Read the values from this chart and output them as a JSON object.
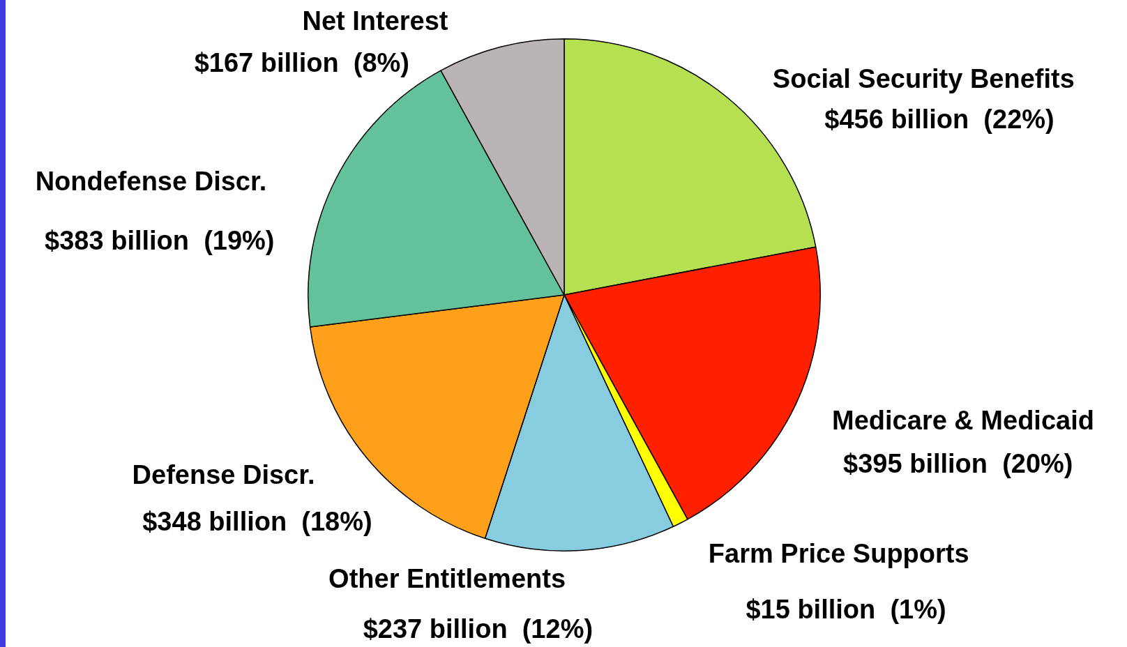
{
  "chart_data": {
    "type": "pie",
    "categories": [
      "Social Security Benefits",
      "Medicare & Medicaid",
      "Farm Price Supports",
      "Other Entitlements",
      "Defense Discr.",
      "Nondefense Discr.",
      "Net Interest"
    ],
    "values": [
      22,
      20,
      1,
      12,
      18,
      19,
      8
    ],
    "value_labels": [
      "$456 billion  (22%)",
      "$395 billion  (20%)",
      "$15 billion  (1%)",
      "$237 billion  (12%)",
      "$348 billion  (18%)",
      "$383 billion  (19%)",
      "$167 billion  (8%)"
    ],
    "colors": [
      "#b5e051",
      "#ff2000",
      "#ffff00",
      "#88cce0",
      "#ffa01a",
      "#63c19b",
      "#bab4b6"
    ],
    "legend": false
  }
}
